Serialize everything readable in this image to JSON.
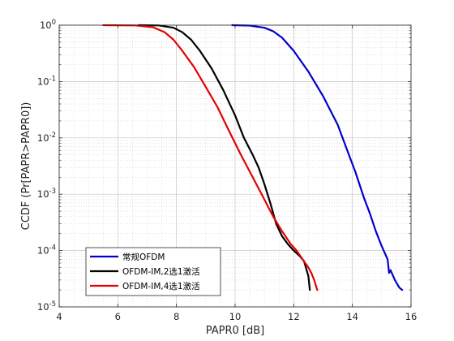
{
  "chart_data": {
    "type": "line",
    "xlabel": "PAPR0 [dB]",
    "ylabel": "CCDF (Pr[PAPR>PAPR0])",
    "xlim": [
      4,
      16
    ],
    "ylim": [
      1e-05,
      1
    ],
    "yscale": "log",
    "grid": "major and minor",
    "legend_position": "bottom-left",
    "x_ticks": [
      "4",
      "6",
      "8",
      "10",
      "12",
      "14",
      "16"
    ],
    "y_ticks": [
      {
        "base": "10",
        "exp": "0"
      },
      {
        "base": "10",
        "exp": "-1"
      },
      {
        "base": "10",
        "exp": "-2"
      },
      {
        "base": "10",
        "exp": "-3"
      },
      {
        "base": "10",
        "exp": "-4"
      },
      {
        "base": "10",
        "exp": "-5"
      }
    ],
    "series": [
      {
        "name": "常规OFDM",
        "color": "#0000cc",
        "points": [
          [
            9.9,
            1
          ],
          [
            10.5,
            0.985
          ],
          [
            11.0,
            0.9
          ],
          [
            11.3,
            0.78
          ],
          [
            11.6,
            0.6
          ],
          [
            12.0,
            0.35
          ],
          [
            12.5,
            0.15
          ],
          [
            13.0,
            0.055
          ],
          [
            13.5,
            0.017
          ],
          [
            13.8,
            0.0065
          ],
          [
            14.1,
            0.0025
          ],
          [
            14.4,
            0.00085
          ],
          [
            14.6,
            0.00045
          ],
          [
            14.8,
            0.00022
          ],
          [
            15.0,
            0.00012
          ],
          [
            15.2,
            7e-05
          ],
          [
            15.25,
            4e-05
          ],
          [
            15.3,
            4.5e-05
          ],
          [
            15.45,
            3e-05
          ],
          [
            15.6,
            2.2e-05
          ],
          [
            15.7,
            2e-05
          ]
        ]
      },
      {
        "name": "OFDM-IM,2选1激活",
        "color": "#000000",
        "points": [
          [
            6.7,
            1
          ],
          [
            7.4,
            0.99
          ],
          [
            7.9,
            0.9
          ],
          [
            8.2,
            0.75
          ],
          [
            8.5,
            0.55
          ],
          [
            8.8,
            0.35
          ],
          [
            9.2,
            0.17
          ],
          [
            9.6,
            0.07
          ],
          [
            10.0,
            0.025
          ],
          [
            10.3,
            0.01
          ],
          [
            10.6,
            0.005
          ],
          [
            10.8,
            0.003
          ],
          [
            11.0,
            0.0015
          ],
          [
            11.2,
            0.0007
          ],
          [
            11.4,
            0.0003
          ],
          [
            11.6,
            0.00018
          ],
          [
            11.8,
            0.00013
          ],
          [
            12.0,
            0.0001
          ],
          [
            12.2,
            8e-05
          ],
          [
            12.35,
            6.5e-05
          ],
          [
            12.5,
            3.5e-05
          ],
          [
            12.55,
            2e-05
          ]
        ]
      },
      {
        "name": "OFDM-IM,4选1激活",
        "color": "#e60000",
        "points": [
          [
            5.5,
            1
          ],
          [
            6.6,
            0.99
          ],
          [
            7.2,
            0.92
          ],
          [
            7.6,
            0.75
          ],
          [
            7.9,
            0.55
          ],
          [
            8.2,
            0.35
          ],
          [
            8.6,
            0.18
          ],
          [
            9.0,
            0.08
          ],
          [
            9.4,
            0.035
          ],
          [
            9.8,
            0.013
          ],
          [
            10.2,
            0.005
          ],
          [
            10.6,
            0.002
          ],
          [
            11.0,
            0.0008
          ],
          [
            11.3,
            0.0004
          ],
          [
            11.6,
            0.00022
          ],
          [
            11.9,
            0.00013
          ],
          [
            12.1,
            0.0001
          ],
          [
            12.3,
            7e-05
          ],
          [
            12.5,
            5e-05
          ],
          [
            12.6,
            4e-05
          ],
          [
            12.7,
            3e-05
          ],
          [
            12.8,
            2e-05
          ]
        ]
      }
    ]
  }
}
